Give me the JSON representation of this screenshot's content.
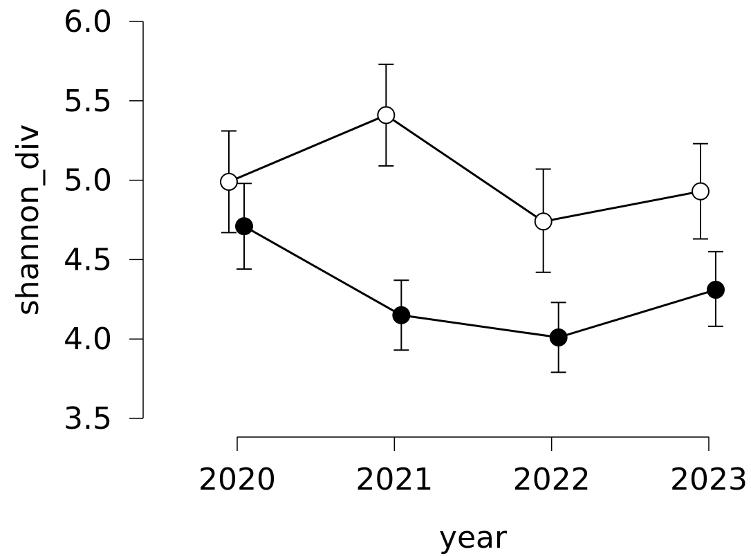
{
  "chart_data": {
    "type": "line",
    "xlabel": "year",
    "ylabel": "shannon_div",
    "x": [
      "2020",
      "2021",
      "2022",
      "2023"
    ],
    "ylim": [
      3.5,
      6.0
    ],
    "yticks": [
      "3.5",
      "4.0",
      "4.5",
      "5.0",
      "5.5",
      "6.0"
    ],
    "grid": false,
    "legend": "none",
    "series": [
      {
        "marker": "open-circle",
        "color": "#000000",
        "fill": "#ffffff",
        "values": [
          4.99,
          5.41,
          4.74,
          4.93
        ],
        "lower": [
          4.67,
          5.09,
          4.42,
          4.63
        ],
        "upper": [
          5.31,
          5.73,
          5.07,
          5.23
        ]
      },
      {
        "marker": "filled-circle",
        "color": "#000000",
        "fill": "#000000",
        "values": [
          4.71,
          4.15,
          4.01,
          4.31
        ],
        "lower": [
          4.44,
          3.93,
          3.79,
          4.08
        ],
        "upper": [
          4.98,
          4.37,
          4.23,
          4.55
        ]
      }
    ]
  }
}
